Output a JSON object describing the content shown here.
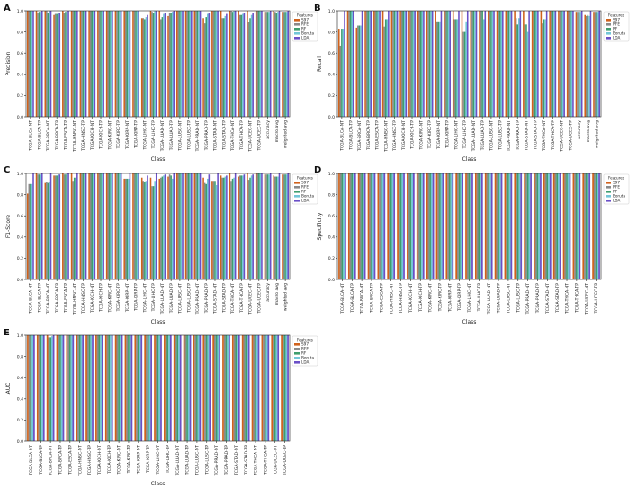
{
  "colors": {
    "S97": "#d0621c",
    "RFE": "#8a8a8a",
    "RF": "#3e9e6e",
    "Boruta": "#72c6d8",
    "LDA": "#6a4fc7"
  },
  "legend": {
    "title": "Features",
    "entries": [
      "S97",
      "RFE",
      "RF",
      "Boruta",
      "LDA"
    ]
  },
  "chart_data": [
    {
      "panel": "A",
      "type": "bar",
      "xlabel": "Class",
      "ylabel": "Precision",
      "ylim": [
        0,
        1.0
      ],
      "yticks": [
        "0.0",
        "0.2",
        "0.4",
        "0.6",
        "0.8",
        "1.0"
      ],
      "categories": [
        "TCGA-BLCA-NT",
        "TCGA-BLCA-TP",
        "TCGA-BRCA-NT",
        "TCGA-BRCA-TP",
        "TCGA-ESCA-TP",
        "TCGA-HNSC-NT",
        "TCGA-HNSC-TP",
        "TCGA-KICH-NT",
        "TCGA-KICH-TP",
        "TCGA-KIRC-NT",
        "TCGA-KIRC-TP",
        "TCGA-KIRP-NT",
        "TCGA-KIRP-TP",
        "TCGA-LIHC-NT",
        "TCGA-LIHC-TP",
        "TCGA-LUAD-NT",
        "TCGA-LUAD-TP",
        "TCGA-LUSC-NT",
        "TCGA-LUSC-TP",
        "TCGA-PRAD-NT",
        "TCGA-PRAD-TP",
        "TCGA-STAD-NT",
        "TCGA-STAD-TP",
        "TCGA-THCA-NT",
        "TCGA-THCA-TP",
        "TCGA-UCEC-NT",
        "TCGA-UCEC-TP",
        "accuracy",
        "macro avg",
        "weighted avg"
      ],
      "series": [
        {
          "name": "S97",
          "values": [
            1,
            1,
            1,
            0.96,
            1,
            1,
            1,
            1,
            1,
            1,
            1,
            1,
            1,
            0.93,
            1,
            1,
            0.95,
            1,
            1,
            1,
            0.93,
            1,
            1,
            1,
            1,
            1,
            1,
            0.99,
            1,
            0.99
          ]
        },
        {
          "name": "RFE",
          "values": [
            1,
            0.98,
            1,
            0.97,
            0.98,
            1,
            1,
            1,
            1,
            1,
            1,
            1,
            1,
            0.93,
            0.99,
            0.92,
            0.98,
            1,
            1,
            1,
            0.88,
            1,
            0.93,
            1,
            0.96,
            0.89,
            1,
            0.99,
            0.99,
            0.99
          ]
        },
        {
          "name": "RF",
          "values": [
            1,
            0.99,
            0.98,
            0.97,
            0.99,
            1,
            1,
            1,
            1,
            1,
            1,
            1,
            1,
            0.92,
            0.98,
            0.94,
            0.98,
            1,
            1,
            1,
            0.94,
            1,
            0.93,
            0.99,
            0.96,
            0.93,
            1,
            0.99,
            0.98,
            0.99
          ]
        },
        {
          "name": "Boruta",
          "values": [
            1,
            0.99,
            1,
            0.98,
            1,
            1,
            1,
            1,
            1,
            1,
            1,
            1,
            1,
            0.94,
            1,
            0.97,
            0.99,
            1,
            1,
            1,
            0.97,
            1,
            0.95,
            1,
            0.97,
            0.96,
            1,
            0.99,
            0.99,
            0.99
          ]
        },
        {
          "name": "LDA",
          "values": [
            1,
            1,
            1,
            0.98,
            1,
            1,
            1,
            1,
            1,
            1,
            1,
            1,
            1,
            0.96,
            1,
            0.98,
            1,
            1,
            1,
            1,
            0.98,
            1,
            0.97,
            1,
            0.98,
            0.98,
            1,
            1,
            1,
            1
          ]
        }
      ]
    },
    {
      "panel": "B",
      "type": "bar",
      "xlabel": "Class",
      "ylabel": "Recall",
      "ylim": [
        0,
        1.0
      ],
      "yticks": [
        "0.0",
        "0.2",
        "0.4",
        "0.6",
        "0.8",
        "1.0"
      ],
      "categories": [
        "TCGA-BLCA-NT",
        "TCGA-BLCA-TP",
        "TCGA-BRCA-NT",
        "TCGA-BRCA-TP",
        "TCGA-ESCA-TP",
        "TCGA-HNSC-NT",
        "TCGA-HNSC-TP",
        "TCGA-KICH-NT",
        "TCGA-KICH-TP",
        "TCGA-KIRC-NT",
        "TCGA-KIRC-TP",
        "TCGA-KIRP-NT",
        "TCGA-KIRP-TP",
        "TCGA-LIHC-NT",
        "TCGA-LIHC-TP",
        "TCGA-LUAD-NT",
        "TCGA-LUAD-TP",
        "TCGA-LUSC-NT",
        "TCGA-LUSC-TP",
        "TCGA-PRAD-NT",
        "TCGA-PRAD-TP",
        "TCGA-STAD-NT",
        "TCGA-STAD-TP",
        "TCGA-THCA-NT",
        "TCGA-THCA-TP",
        "TCGA-UCEC-NT",
        "TCGA-UCEC-TP",
        "accuracy",
        "macro avg",
        "weighted avg"
      ],
      "series": [
        {
          "name": "S97",
          "values": [
            0.83,
            1,
            0.84,
            1,
            1,
            1,
            1,
            1,
            1,
            1,
            1,
            1,
            1,
            1,
            1,
            1,
            1,
            1,
            1,
            1,
            1,
            1,
            1,
            1,
            1,
            1,
            1,
            0.99,
            0.96,
            0.99
          ]
        },
        {
          "name": "RFE",
          "values": [
            0.67,
            1,
            0.86,
            1,
            1,
            0.85,
            1,
            1,
            1,
            1,
            1,
            0.9,
            1,
            0.92,
            0.8,
            1,
            1,
            1,
            1,
            1,
            0.93,
            0.87,
            1,
            0.88,
            1,
            1,
            1,
            0.99,
            0.95,
            0.99
          ]
        },
        {
          "name": "RF",
          "values": [
            0.83,
            1,
            0.86,
            1,
            1,
            0.92,
            1,
            1,
            1,
            1,
            1,
            0.9,
            1,
            0.92,
            0.8,
            1,
            1,
            1,
            1,
            1,
            0.87,
            0.87,
            1,
            0.92,
            1,
            1,
            1,
            0.99,
            0.96,
            0.99
          ]
        },
        {
          "name": "Boruta",
          "values": [
            0.83,
            1,
            0.86,
            1,
            1,
            0.92,
            1,
            1,
            1,
            1,
            1,
            0.9,
            1,
            0.92,
            0.9,
            1,
            0.92,
            1,
            1,
            1,
            0.93,
            0.8,
            1,
            0.92,
            1,
            1,
            1,
            0.99,
            0.95,
            0.99
          ]
        },
        {
          "name": "LDA",
          "values": [
            1,
            1,
            1,
            1,
            1,
            1,
            1,
            1,
            1,
            1,
            1,
            1,
            1,
            1,
            1,
            1,
            1,
            1,
            1,
            1,
            1,
            1,
            1,
            1,
            1,
            1,
            1,
            1,
            1,
            1
          ]
        }
      ]
    },
    {
      "panel": "C",
      "type": "bar",
      "xlabel": "Class",
      "ylabel": "F1-Score",
      "ylim": [
        0,
        1.0
      ],
      "yticks": [
        "0.0",
        "0.2",
        "0.4",
        "0.6",
        "0.8",
        "1.0"
      ],
      "categories": [
        "TCGA-BLCA-NT",
        "TCGA-BLCA-TP",
        "TCGA-BRCA-NT",
        "TCGA-BRCA-TP",
        "TCGA-ESCA-TP",
        "TCGA-HNSC-NT",
        "TCGA-HNSC-TP",
        "TCGA-KICH-NT",
        "TCGA-KICH-TP",
        "TCGA-KIRC-NT",
        "TCGA-KIRC-TP",
        "TCGA-KIRP-NT",
        "TCGA-KIRP-TP",
        "TCGA-LIHC-NT",
        "TCGA-LIHC-TP",
        "TCGA-LUAD-NT",
        "TCGA-LUAD-TP",
        "TCGA-LUSC-NT",
        "TCGA-LUSC-TP",
        "TCGA-PRAD-NT",
        "TCGA-PRAD-TP",
        "TCGA-STAD-NT",
        "TCGA-STAD-TP",
        "TCGA-THCA-NT",
        "TCGA-THCA-TP",
        "TCGA-UCEC-NT",
        "TCGA-UCEC-TP",
        "accuracy",
        "macro avg",
        "weighted avg"
      ],
      "series": [
        {
          "name": "S97",
          "values": [
            0.81,
            1,
            0.91,
            0.98,
            1,
            1,
            1,
            1,
            1,
            1,
            1,
            0.95,
            1,
            0.96,
            0.96,
            0.95,
            0.97,
            1,
            1,
            1,
            0.96,
            0.93,
            0.98,
            1,
            0.97,
            1,
            1,
            0.99,
            0.98,
            0.99
          ]
        },
        {
          "name": "RFE",
          "values": [
            0.9,
            0.99,
            0.92,
            0.98,
            0.99,
            0.93,
            1,
            1,
            1,
            1,
            1,
            0.95,
            1,
            0.93,
            0.88,
            0.96,
            0.99,
            1,
            1,
            1,
            0.91,
            0.93,
            0.96,
            0.93,
            0.98,
            0.94,
            1,
            0.99,
            0.97,
            0.99
          ]
        },
        {
          "name": "RF",
          "values": [
            0.9,
            0.99,
            0.91,
            0.98,
            0.99,
            0.96,
            1,
            1,
            1,
            1,
            1,
            0.95,
            1,
            0.92,
            0.88,
            0.97,
            0.98,
            1,
            1,
            1,
            0.9,
            0.93,
            0.96,
            0.95,
            0.98,
            0.96,
            1,
            0.99,
            0.97,
            0.99
          ]
        },
        {
          "name": "Boruta",
          "values": [
            0.9,
            0.99,
            0.92,
            0.99,
            1,
            0.96,
            1,
            1,
            1,
            1,
            1,
            0.95,
            1,
            0.93,
            0.93,
            0.98,
            0.95,
            1,
            1,
            1,
            0.95,
            0.89,
            0.97,
            0.96,
            0.98,
            0.98,
            1,
            0.99,
            0.97,
            0.99
          ]
        },
        {
          "name": "LDA",
          "values": [
            1,
            1,
            1,
            0.99,
            1,
            1,
            1,
            1,
            1,
            1,
            1,
            1,
            1,
            0.98,
            1,
            0.99,
            1,
            1,
            1,
            1,
            0.99,
            1,
            0.98,
            1,
            0.99,
            0.99,
            1,
            1,
            1,
            1
          ]
        }
      ]
    },
    {
      "panel": "D",
      "type": "bar",
      "xlabel": "Class",
      "ylabel": "Specificity",
      "ylim": [
        0,
        1.0
      ],
      "yticks": [
        "0.0",
        "0.2",
        "0.4",
        "0.6",
        "0.8",
        "1.0"
      ],
      "categories": [
        "TCGA-BLCA-NT",
        "TCGA-BLCA-TP",
        "TCGA-BRCA-NT",
        "TCGA-BRCA-TP",
        "TCGA-ESCA-TP",
        "TCGA-HNSC-NT",
        "TCGA-HNSC-TP",
        "TCGA-KICH-NT",
        "TCGA-KICH-TP",
        "TCGA-KIRC-NT",
        "TCGA-KIRC-TP",
        "TCGA-KIRP-NT",
        "TCGA-KIRP-TP",
        "TCGA-LIHC-NT",
        "TCGA-LIHC-TP",
        "TCGA-LUAD-NT",
        "TCGA-LUAD-TP",
        "TCGA-LUSC-NT",
        "TCGA-LUSC-TP",
        "TCGA-PRAD-NT",
        "TCGA-PRAD-TP",
        "TCGA-STAD-NT",
        "TCGA-STAD-TP",
        "TCGA-THCA-NT",
        "TCGA-THCA-TP",
        "TCGA-UCEC-NT",
        "TCGA-UCEC-TP"
      ],
      "series": [
        {
          "name": "S97",
          "values": [
            1,
            1,
            1,
            1,
            1,
            1,
            1,
            1,
            1,
            1,
            1,
            1,
            1,
            1,
            1,
            1,
            1,
            1,
            1,
            1,
            1,
            1,
            1,
            1,
            1,
            1,
            1
          ]
        },
        {
          "name": "RFE",
          "values": [
            1,
            1,
            1,
            1,
            1,
            1,
            1,
            1,
            1,
            1,
            1,
            1,
            1,
            1,
            1,
            1,
            1,
            1,
            1,
            1,
            1,
            1,
            1,
            1,
            1,
            1,
            1
          ]
        },
        {
          "name": "RF",
          "values": [
            1,
            1,
            1,
            1,
            1,
            1,
            1,
            1,
            1,
            1,
            1,
            1,
            1,
            1,
            1,
            1,
            1,
            1,
            1,
            1,
            1,
            1,
            1,
            1,
            1,
            1,
            1
          ]
        },
        {
          "name": "Boruta",
          "values": [
            1,
            1,
            1,
            1,
            1,
            1,
            1,
            1,
            1,
            1,
            1,
            1,
            1,
            1,
            1,
            1,
            1,
            1,
            1,
            1,
            1,
            1,
            1,
            1,
            1,
            1,
            1
          ]
        },
        {
          "name": "LDA",
          "values": [
            1,
            1,
            1,
            1,
            1,
            1,
            1,
            1,
            1,
            1,
            1,
            1,
            1,
            1,
            1,
            1,
            1,
            1,
            1,
            1,
            1,
            1,
            1,
            1,
            1,
            1,
            1
          ]
        }
      ]
    },
    {
      "panel": "E",
      "type": "bar",
      "xlabel": "Class",
      "ylabel": "AUC",
      "ylim": [
        0,
        1.0
      ],
      "yticks": [
        "0.0",
        "0.2",
        "0.4",
        "0.6",
        "0.8",
        "1.0"
      ],
      "categories": [
        "TCGA-BLCA-NT",
        "TCGA-BLCA-TP",
        "TCGA-BRCA-NT",
        "TCGA-BRCA-TP",
        "TCGA-ESCA-TP",
        "TCGA-HNSC-NT",
        "TCGA-HNSC-TP",
        "TCGA-KICH-NT",
        "TCGA-KICH-TP",
        "TCGA-KIRC-NT",
        "TCGA-KIRC-TP",
        "TCGA-KIRP-NT",
        "TCGA-KIRP-TP",
        "TCGA-LIHC-NT",
        "TCGA-LIHC-TP",
        "TCGA-LUAD-NT",
        "TCGA-LUAD-TP",
        "TCGA-LUSC-NT",
        "TCGA-LUSC-TP",
        "TCGA-PRAD-NT",
        "TCGA-PRAD-TP",
        "TCGA-STAD-NT",
        "TCGA-STAD-TP",
        "TCGA-THCA-NT",
        "TCGA-THCA-TP",
        "TCGA-UCEC-NT",
        "TCGA-UCEC-TP"
      ],
      "series": [
        {
          "name": "S97",
          "values": [
            1,
            1,
            1,
            1,
            1,
            1,
            1,
            1,
            1,
            1,
            1,
            1,
            1,
            1,
            1,
            1,
            1,
            1,
            1,
            1,
            1,
            1,
            1,
            1,
            1,
            1,
            1
          ]
        },
        {
          "name": "RFE",
          "values": [
            1,
            1,
            0.98,
            1,
            1,
            1,
            1,
            1,
            1,
            1,
            1,
            1,
            1,
            1,
            1,
            1,
            1,
            1,
            1,
            1,
            1,
            1,
            1,
            1,
            1,
            1,
            1
          ]
        },
        {
          "name": "RF",
          "values": [
            1,
            1,
            0.98,
            1,
            1,
            1,
            1,
            1,
            1,
            1,
            1,
            1,
            1,
            1,
            1,
            1,
            1,
            1,
            1,
            1,
            1,
            1,
            1,
            1,
            1,
            1,
            1
          ]
        },
        {
          "name": "Boruta",
          "values": [
            1,
            1,
            0.99,
            1,
            1,
            1,
            1,
            1,
            1,
            1,
            1,
            1,
            1,
            1,
            1,
            1,
            1,
            1,
            1,
            1,
            1,
            1,
            1,
            1,
            1,
            1,
            1
          ]
        },
        {
          "name": "LDA",
          "values": [
            1,
            1,
            1,
            1,
            1,
            1,
            1,
            1,
            1,
            1,
            1,
            1,
            1,
            1,
            1,
            1,
            1,
            1,
            1,
            1,
            1,
            1,
            1,
            1,
            1,
            1,
            1
          ]
        }
      ]
    }
  ]
}
